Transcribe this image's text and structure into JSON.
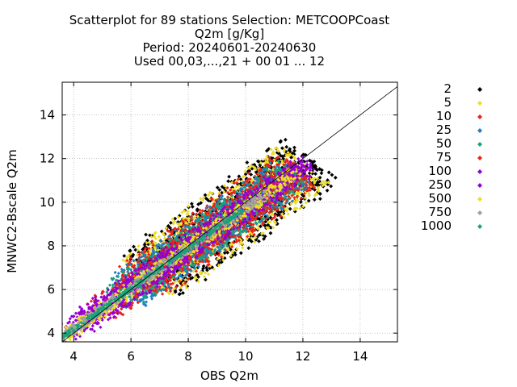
{
  "chart_data": {
    "type": "scatter",
    "title_lines": [
      "Scatterplot for   89 stations Selection: METCOOPCoast",
      "Q2m [g/Kg]",
      "Period: 20240601-20240630",
      "Used 00,03,...,21 + 00 01 ... 12"
    ],
    "xlabel": "OBS Q2m",
    "ylabel": "MNWC2-Bscale Q2m",
    "xlim": [
      3.6,
      15.3
    ],
    "ylim": [
      3.6,
      15.5
    ],
    "xticks": [
      4,
      6,
      8,
      10,
      12,
      14
    ],
    "yticks": [
      4,
      6,
      8,
      10,
      12,
      14
    ],
    "grid": true,
    "legend_position": "right",
    "diagonal_line": {
      "from": [
        3.6,
        3.6
      ],
      "to": [
        15.3,
        15.3
      ]
    },
    "density_bands": [
      {
        "name": "2",
        "color": "#000000",
        "band": [
          1.55,
          1.2
        ],
        "slope": [
          0.15,
          0.05
        ]
      },
      {
        "name": "5",
        "color": "#eedd22",
        "band": [
          1.5,
          1.1
        ],
        "slope": [
          0.3,
          0.15
        ]
      },
      {
        "name": "10",
        "color": "#e8221c",
        "band": [
          1.2,
          0.95
        ],
        "slope": [
          0.55,
          0.2
        ]
      },
      {
        "name": "25",
        "color": "#1f7fbf",
        "band": [
          1.0,
          0.8
        ],
        "slope": [
          1.0,
          0.5
        ]
      },
      {
        "name": "50",
        "color": "#1aa37a",
        "band": [
          0.85,
          0.7
        ],
        "slope": [
          1.4,
          0.9
        ]
      },
      {
        "name": "75",
        "color": "#e8221c",
        "band": [
          0.72,
          0.6
        ],
        "slope": [
          2.0,
          1.5
        ]
      },
      {
        "name": "100",
        "color": "#9400d3",
        "band": [
          0.62,
          0.52
        ],
        "slope": [
          2.5,
          1.9
        ]
      },
      {
        "name": "250",
        "color": "#9400d3",
        "band": [
          0.5,
          0.42
        ],
        "slope": [
          3.0,
          2.4
        ]
      },
      {
        "name": "500",
        "color": "#eedd22",
        "band": [
          0.33,
          0.3
        ],
        "slope": [
          3.8,
          2.3
        ]
      },
      {
        "name": "750",
        "color": "#a0a0a0",
        "band": [
          0.22,
          0.22
        ],
        "slope": [
          4.4,
          1.6
        ]
      },
      {
        "name": "1000",
        "color": "#1aa37a",
        "band": [
          0.1,
          0.1
        ],
        "slope": [
          4.8,
          1.1
        ]
      }
    ]
  }
}
